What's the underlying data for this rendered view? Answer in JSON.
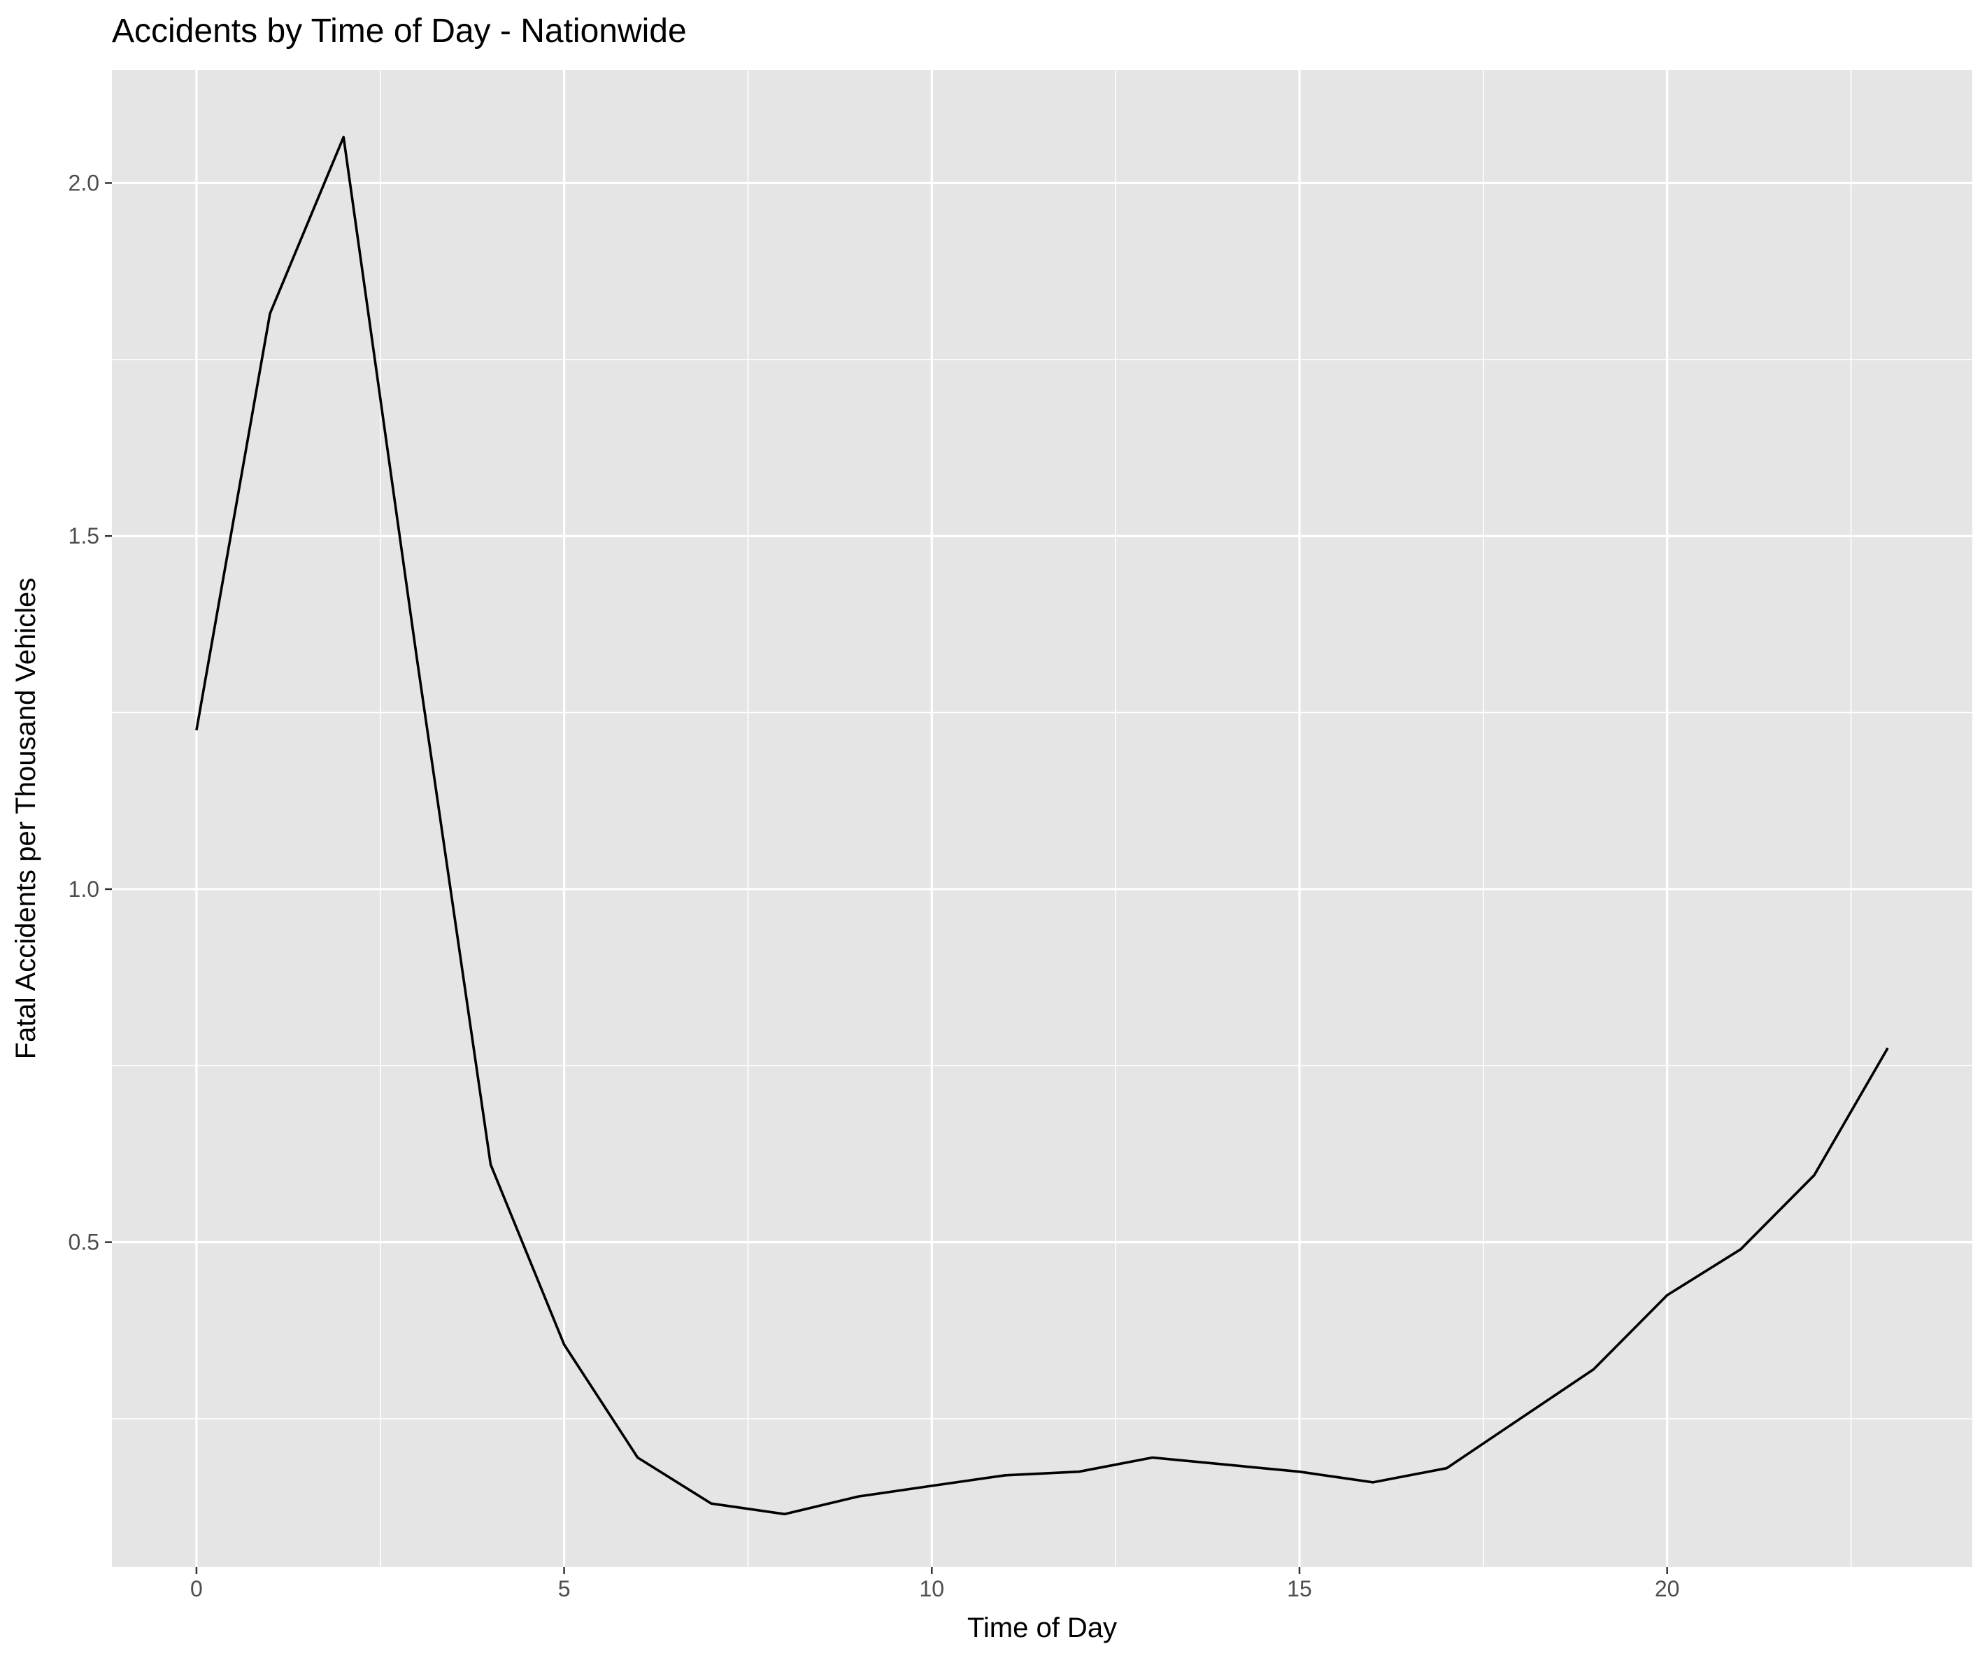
{
  "chart_data": {
    "type": "line",
    "title": "Accidents by Time of Day - Nationwide",
    "xlabel": "Time of Day",
    "ylabel": "Fatal Accidents per Thousand Vehicles",
    "x": [
      0,
      1,
      2,
      3,
      4,
      5,
      6,
      7,
      8,
      9,
      10,
      11,
      12,
      13,
      14,
      15,
      16,
      17,
      18,
      19,
      20,
      21,
      22,
      23
    ],
    "series": [
      {
        "values": [
          1.225,
          1.815,
          2.065,
          1.325,
          0.61,
          0.355,
          0.195,
          0.13,
          0.115,
          0.14,
          0.155,
          0.17,
          0.175,
          0.195,
          0.185,
          0.175,
          0.16,
          0.18,
          0.25,
          0.32,
          0.425,
          0.49,
          0.595,
          0.775
        ],
        "color": "#000000"
      }
    ],
    "xlim": [
      -1.15,
      24.15
    ],
    "ylim": [
      0.04,
      2.16
    ],
    "x_ticks": [
      0,
      5,
      10,
      15,
      20
    ],
    "x_tick_labels": [
      "0",
      "5",
      "10",
      "15",
      "20"
    ],
    "x_minor_ticks": [
      2.5,
      7.5,
      12.5,
      17.5,
      22.5
    ],
    "y_ticks": [
      0.5,
      1.0,
      1.5,
      2.0
    ],
    "y_tick_labels": [
      "0.5",
      "1.0",
      "1.5",
      "2.0"
    ],
    "y_minor_ticks": [
      0.25,
      0.75,
      1.25,
      1.75
    ],
    "grid": true,
    "legend": "none",
    "colors": {
      "panel_background": "#e5e5e5",
      "grid_line": "#ffffff",
      "line": "#000000",
      "tick_text": "#4d4d4d",
      "tick_mark": "#333333"
    }
  }
}
